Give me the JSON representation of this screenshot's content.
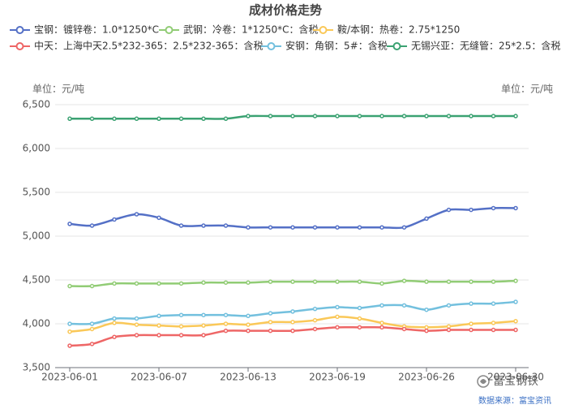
{
  "chart_data": {
    "type": "line",
    "title": "成材价格走势",
    "y_unit": "单位：元/吨",
    "y2_unit": "单位：元/吨",
    "source": "数据来源：富宝资讯",
    "watermark": "富宝钢铁",
    "categories": [
      "2023-06-01",
      null,
      null,
      null,
      "2023-06-07",
      null,
      null,
      null,
      "2023-06-13",
      null,
      null,
      null,
      "2023-06-19",
      null,
      null,
      null,
      "2023-06-26",
      null,
      null,
      null,
      "2023-06-30"
    ],
    "ylim": [
      3500,
      6500
    ],
    "yticks": [
      {
        "value": 3500,
        "label": "3,500"
      },
      {
        "value": 4000,
        "label": "4,000"
      },
      {
        "value": 4500,
        "label": "4,500"
      },
      {
        "value": 5000,
        "label": "5,000"
      },
      {
        "value": 5500,
        "label": "5,500"
      },
      {
        "value": 6000,
        "label": "6,000"
      },
      {
        "value": 6500,
        "label": "6,500"
      }
    ],
    "grid": true,
    "series": [
      {
        "name": "宝钢：镀锌卷：1.0*1250*C",
        "color": "#5470c6",
        "values": [
          5140,
          5120,
          5190,
          5250,
          5210,
          5120,
          5120,
          5120,
          5100,
          5100,
          5100,
          5100,
          5100,
          5100,
          5100,
          5100,
          5200,
          5300,
          5300,
          5320,
          5320
        ]
      },
      {
        "name": "武钢：冷卷：1*1250*C：含税",
        "color": "#91cc75",
        "values": [
          4430,
          4430,
          4460,
          4460,
          4460,
          4460,
          4470,
          4470,
          4470,
          4480,
          4480,
          4480,
          4480,
          4480,
          4460,
          4490,
          4480,
          4480,
          4480,
          4480,
          4490
        ]
      },
      {
        "name": "鞍/本钢：热卷：2.75*1250",
        "color": "#fac858",
        "values": [
          3910,
          3940,
          4010,
          3990,
          3980,
          3970,
          3980,
          4000,
          3990,
          4020,
          4020,
          4040,
          4080,
          4060,
          4010,
          3970,
          3960,
          3970,
          4000,
          4010,
          4030
        ]
      },
      {
        "name": "中天：上海中天2.5*232-365：2.5*232-365：含税",
        "color": "#ee6666",
        "values": [
          3750,
          3770,
          3850,
          3870,
          3870,
          3870,
          3870,
          3920,
          3920,
          3920,
          3920,
          3940,
          3960,
          3960,
          3960,
          3940,
          3920,
          3930,
          3930,
          3930,
          3930
        ]
      },
      {
        "name": "安钢：角钢：5#：含税",
        "color": "#73c0de",
        "values": [
          4000,
          4000,
          4060,
          4060,
          4090,
          4100,
          4100,
          4100,
          4090,
          4120,
          4140,
          4170,
          4190,
          4180,
          4210,
          4210,
          4160,
          4210,
          4230,
          4230,
          4250
        ]
      },
      {
        "name": "无锡兴亚：无缝管：25*2.5：含税",
        "color": "#3ba272",
        "values": [
          6340,
          6340,
          6340,
          6340,
          6340,
          6340,
          6340,
          6340,
          6370,
          6370,
          6370,
          6370,
          6370,
          6370,
          6370,
          6370,
          6370,
          6370,
          6370,
          6370,
          6370
        ]
      }
    ]
  }
}
